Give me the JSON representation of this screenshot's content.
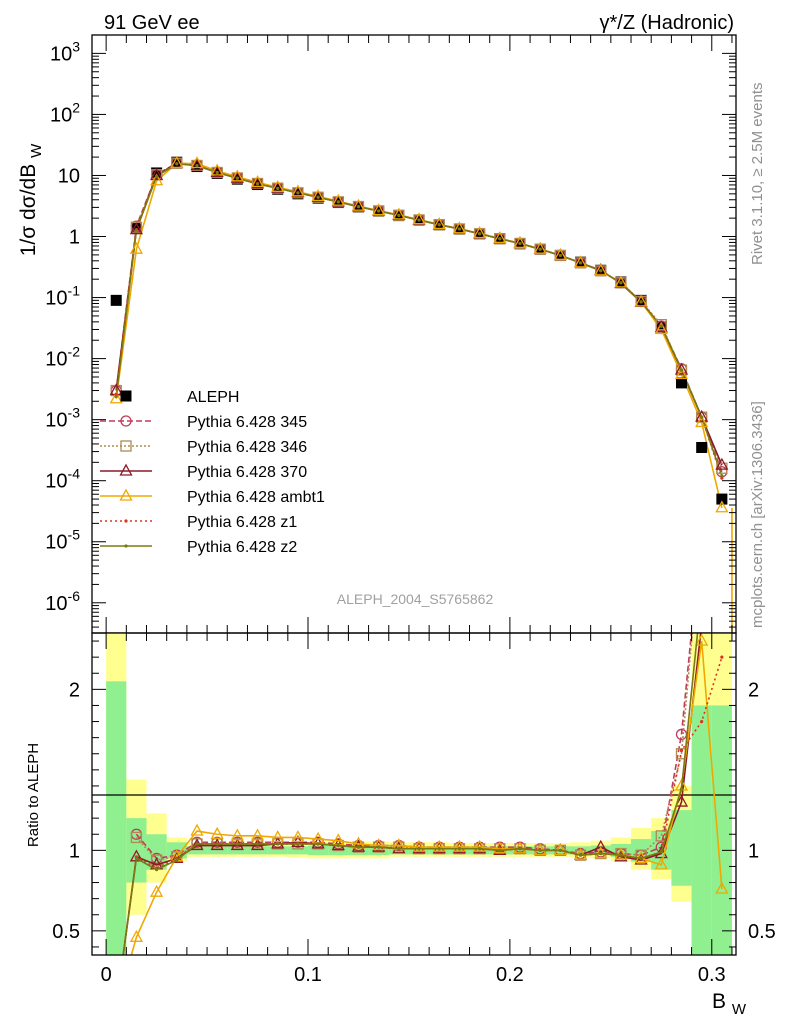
{
  "header": {
    "left": "91 GeV ee",
    "right": "γ*/Z (Hadronic)"
  },
  "side_labels": {
    "rivet": "Rivet 3.1.10, ≥ 2.5M events",
    "mcplots": "mcplots.cern.ch [arXiv:1306.3436]"
  },
  "watermark": "ALEPH_2004_S5765862",
  "colors": {
    "ALEPH": "#000000",
    "p345": "#c03a5a",
    "p346": "#b08a50",
    "p370": "#8c1a28",
    "ambt1": "#f0a800",
    "z1": "#e03020",
    "z2": "#7a7a10",
    "band_inner": "#90f090",
    "band_outer": "#ffff90"
  },
  "chart_data": [
    {
      "type": "line",
      "panel": "main",
      "ylabel": "1/σ  dσ/dB_W",
      "yscale": "log",
      "xlim": [
        -0.007,
        0.312
      ],
      "ylim": [
        3.2e-07,
        2000
      ],
      "yticks": [
        {
          "v": 1e-06,
          "label": "10",
          "exp": "-6"
        },
        {
          "v": 1e-05,
          "label": "10",
          "exp": "-5"
        },
        {
          "v": 0.0001,
          "label": "10",
          "exp": "-4"
        },
        {
          "v": 0.001,
          "label": "10",
          "exp": "-3"
        },
        {
          "v": 0.01,
          "label": "10",
          "exp": "-2"
        },
        {
          "v": 0.1,
          "label": "10",
          "exp": "-1"
        },
        {
          "v": 1,
          "label": "1",
          "exp": ""
        },
        {
          "v": 10,
          "label": "10",
          "exp": ""
        },
        {
          "v": 100,
          "label": "10",
          "exp": "2"
        },
        {
          "v": 1000,
          "label": "10",
          "exp": "3"
        }
      ],
      "x": [
        0.005,
        0.015,
        0.025,
        0.035,
        0.045,
        0.055,
        0.065,
        0.075,
        0.085,
        0.095,
        0.105,
        0.115,
        0.125,
        0.135,
        0.145,
        0.155,
        0.165,
        0.175,
        0.185,
        0.195,
        0.205,
        0.215,
        0.225,
        0.235,
        0.245,
        0.255,
        0.265,
        0.275,
        0.285,
        0.295,
        0.305
      ],
      "legend": {
        "placement": "left-middle",
        "entries": [
          {
            "key": "ALEPH",
            "label": "ALEPH"
          },
          {
            "key": "p345",
            "label": "Pythia 6.428 345"
          },
          {
            "key": "p346",
            "label": "Pythia 6.428 346"
          },
          {
            "key": "p370",
            "label": "Pythia 6.428 370"
          },
          {
            "key": "ambt1",
            "label": "Pythia 6.428 ambt1"
          },
          {
            "key": "z1",
            "label": "Pythia 6.428 z1"
          },
          {
            "key": "z2",
            "label": "Pythia 6.428 z2"
          }
        ]
      },
      "series": [
        {
          "key": "ALEPH",
          "name": "ALEPH",
          "values": [
            0.09,
            1.35,
            11.0,
            16.5,
            14.0,
            10.8,
            8.7,
            7.1,
            5.95,
            5.0,
            4.25,
            3.6,
            3.05,
            2.6,
            2.2,
            1.85,
            1.55,
            1.32,
            1.1,
            0.92,
            0.76,
            0.62,
            0.49,
            0.38,
            0.28,
            0.18,
            0.09,
            0.033,
            0.004,
            0.00035,
            5e-05
          ]
        },
        {
          "key": "p345",
          "name": "Pythia 6.428 345",
          "values": [
            0.003,
            1.48,
            10.4,
            16.0,
            14.7,
            11.3,
            9.1,
            7.4,
            6.2,
            5.2,
            4.4,
            3.7,
            3.1,
            2.64,
            2.24,
            1.88,
            1.57,
            1.34,
            1.12,
            0.93,
            0.77,
            0.62,
            0.49,
            0.37,
            0.275,
            0.175,
            0.086,
            0.034,
            0.0068,
            0.0011,
            0.00014
          ]
        },
        {
          "key": "p346",
          "name": "Pythia 6.428 346",
          "values": [
            0.003,
            1.42,
            10.3,
            15.9,
            14.6,
            11.2,
            9.1,
            7.4,
            6.2,
            5.2,
            4.4,
            3.7,
            3.1,
            2.63,
            2.23,
            1.87,
            1.56,
            1.33,
            1.11,
            0.92,
            0.77,
            0.62,
            0.49,
            0.37,
            0.274,
            0.175,
            0.087,
            0.036,
            0.0065,
            0.0011,
            0.00016
          ]
        },
        {
          "key": "p370",
          "name": "Pythia 6.428 370",
          "values": [
            0.003,
            1.3,
            10.0,
            15.7,
            14.5,
            11.2,
            9.0,
            7.3,
            6.2,
            5.25,
            4.4,
            3.7,
            3.08,
            2.62,
            2.22,
            1.86,
            1.56,
            1.33,
            1.11,
            0.92,
            0.77,
            0.62,
            0.49,
            0.37,
            0.28,
            0.17,
            0.084,
            0.032,
            0.0065,
            0.0011,
            0.00018
          ]
        },
        {
          "key": "ambt1",
          "name": "Pythia 6.428 ambt1",
          "values": [
            0.0022,
            0.62,
            8.2,
            15.8,
            15.7,
            11.9,
            9.5,
            7.7,
            6.4,
            5.4,
            4.55,
            3.8,
            3.15,
            2.66,
            2.26,
            1.89,
            1.58,
            1.34,
            1.12,
            0.93,
            0.77,
            0.62,
            0.49,
            0.37,
            0.274,
            0.174,
            0.085,
            0.03,
            0.0055,
            0.0009,
            3.6e-05
          ]
        },
        {
          "key": "z1",
          "name": "Pythia 6.428 z1",
          "values": [
            0.0026,
            1.3,
            9.8,
            15.6,
            14.5,
            11.2,
            9.05,
            7.35,
            6.15,
            5.2,
            4.4,
            3.7,
            3.08,
            2.62,
            2.22,
            1.86,
            1.56,
            1.33,
            1.11,
            0.92,
            0.77,
            0.62,
            0.49,
            0.37,
            0.275,
            0.175,
            0.085,
            0.034,
            0.0065,
            0.0011,
            0.00011
          ]
        },
        {
          "key": "z2",
          "name": "Pythia 6.428 z2",
          "values": [
            0.0024,
            1.28,
            9.7,
            15.5,
            14.5,
            11.2,
            9.0,
            7.3,
            6.15,
            5.2,
            4.4,
            3.7,
            3.08,
            2.62,
            2.22,
            1.86,
            1.56,
            1.33,
            1.11,
            0.92,
            0.77,
            0.62,
            0.49,
            0.37,
            0.275,
            0.175,
            0.085,
            0.034,
            0.0065,
            0.0011,
            0.00012
          ]
        }
      ]
    },
    {
      "type": "line",
      "panel": "ratio",
      "ylabel": "Ratio to ALEPH",
      "xlabel": "B_W",
      "xlim": [
        -0.007,
        0.312
      ],
      "ylim": [
        0.35,
        2.35
      ],
      "xticks": [
        {
          "v": 0,
          "label": "0"
        },
        {
          "v": 0.1,
          "label": "0.1"
        },
        {
          "v": 0.2,
          "label": "0.2"
        },
        {
          "v": 0.3,
          "label": "0.3"
        }
      ],
      "yticks": [
        {
          "v": 0.5,
          "label": "0.5"
        },
        {
          "v": 1,
          "label": "1"
        },
        {
          "v": 2,
          "label": "2"
        }
      ],
      "band_edges": [
        0,
        0.01,
        0.02,
        0.03,
        0.04,
        0.05,
        0.06,
        0.07,
        0.08,
        0.09,
        0.1,
        0.11,
        0.12,
        0.13,
        0.14,
        0.15,
        0.16,
        0.17,
        0.18,
        0.19,
        0.2,
        0.21,
        0.22,
        0.23,
        0.24,
        0.25,
        0.26,
        0.27,
        0.28,
        0.29,
        0.3,
        0.31
      ],
      "band_inner": [
        [
          0,
          2.05
        ],
        [
          0.8,
          1.2
        ],
        [
          0.88,
          1.1
        ],
        [
          0.95,
          1.05
        ],
        [
          0.975,
          1.025
        ],
        [
          0.975,
          1.025
        ],
        [
          0.975,
          1.025
        ],
        [
          0.975,
          1.025
        ],
        [
          0.975,
          1.025
        ],
        [
          0.975,
          1.025
        ],
        [
          0.97,
          1.03
        ],
        [
          0.97,
          1.03
        ],
        [
          0.97,
          1.03
        ],
        [
          0.97,
          1.03
        ],
        [
          0.975,
          1.025
        ],
        [
          0.975,
          1.025
        ],
        [
          0.975,
          1.025
        ],
        [
          0.975,
          1.025
        ],
        [
          0.975,
          1.025
        ],
        [
          0.975,
          1.025
        ],
        [
          0.975,
          1.025
        ],
        [
          0.975,
          1.025
        ],
        [
          0.975,
          1.025
        ],
        [
          0.975,
          1.025
        ],
        [
          0.97,
          1.03
        ],
        [
          0.96,
          1.04
        ],
        [
          0.93,
          1.07
        ],
        [
          0.88,
          1.12
        ],
        [
          0.78,
          1.25
        ],
        [
          0.35,
          1.9
        ],
        [
          0.35,
          1.9
        ]
      ],
      "band_outer": [
        [
          0,
          2.35
        ],
        [
          0.6,
          1.44
        ],
        [
          0.8,
          1.23
        ],
        [
          0.93,
          1.08
        ],
        [
          0.96,
          1.045
        ],
        [
          0.96,
          1.045
        ],
        [
          0.96,
          1.05
        ],
        [
          0.96,
          1.05
        ],
        [
          0.96,
          1.05
        ],
        [
          0.955,
          1.05
        ],
        [
          0.95,
          1.055
        ],
        [
          0.95,
          1.055
        ],
        [
          0.95,
          1.055
        ],
        [
          0.95,
          1.055
        ],
        [
          0.96,
          1.05
        ],
        [
          0.96,
          1.05
        ],
        [
          0.96,
          1.05
        ],
        [
          0.96,
          1.045
        ],
        [
          0.96,
          1.045
        ],
        [
          0.96,
          1.045
        ],
        [
          0.96,
          1.045
        ],
        [
          0.96,
          1.045
        ],
        [
          0.96,
          1.045
        ],
        [
          0.955,
          1.05
        ],
        [
          0.95,
          1.06
        ],
        [
          0.93,
          1.08
        ],
        [
          0.88,
          1.14
        ],
        [
          0.82,
          1.2
        ],
        [
          0.68,
          1.4
        ],
        [
          0.35,
          2.35
        ],
        [
          0.35,
          2.35
        ]
      ],
      "series": [
        {
          "key": "p345",
          "name": "Pythia 6.428 345",
          "values": [
            null,
            1.1,
            0.95,
            0.97,
            1.05,
            1.05,
            1.05,
            1.05,
            1.05,
            1.05,
            1.05,
            1.04,
            1.03,
            1.03,
            1.03,
            1.02,
            1.02,
            1.02,
            1.02,
            1.02,
            1.02,
            1.01,
            1.0,
            0.98,
            0.99,
            0.98,
            0.97,
            1.02,
            1.72,
            3.0,
            null
          ]
        },
        {
          "key": "p346",
          "name": "Pythia 6.428 346",
          "values": [
            null,
            1.08,
            0.94,
            0.96,
            1.04,
            1.04,
            1.04,
            1.04,
            1.04,
            1.04,
            1.04,
            1.03,
            1.02,
            1.02,
            1.02,
            1.01,
            1.01,
            1.01,
            1.01,
            1.01,
            1.01,
            1.0,
            1.0,
            0.97,
            0.98,
            0.98,
            0.97,
            1.09,
            1.6,
            3.0,
            null
          ]
        },
        {
          "key": "p370",
          "name": "Pythia 6.428 370",
          "values": [
            0.03,
            0.96,
            0.91,
            0.95,
            1.03,
            1.03,
            1.03,
            1.03,
            1.04,
            1.05,
            1.04,
            1.03,
            1.02,
            1.02,
            1.01,
            1.01,
            1.01,
            1.01,
            1.01,
            1.0,
            1.01,
            1.0,
            1.0,
            0.97,
            1.02,
            0.96,
            0.94,
            0.98,
            1.3,
            2.4,
            null
          ]
        },
        {
          "key": "ambt1",
          "name": "Pythia 6.428 ambt1",
          "values": [
            0.02,
            0.46,
            0.74,
            0.96,
            1.12,
            1.1,
            1.09,
            1.09,
            1.08,
            1.08,
            1.07,
            1.06,
            1.04,
            1.03,
            1.03,
            1.02,
            1.02,
            1.02,
            1.02,
            1.01,
            1.01,
            1.0,
            1.0,
            0.97,
            0.98,
            0.97,
            0.95,
            0.91,
            1.4,
            2.3,
            0.76
          ]
        },
        {
          "key": "z1",
          "name": "Pythia 6.428 z1",
          "values": [
            0.03,
            0.96,
            0.89,
            0.95,
            1.04,
            1.04,
            1.04,
            1.04,
            1.04,
            1.04,
            1.04,
            1.03,
            1.02,
            1.02,
            1.01,
            1.01,
            1.01,
            1.01,
            1.01,
            1.0,
            1.01,
            1.0,
            1.0,
            0.97,
            0.98,
            0.97,
            0.95,
            0.99,
            1.62,
            1.8,
            2.2
          ]
        },
        {
          "key": "z2",
          "name": "Pythia 6.428 z2",
          "values": [
            0.03,
            0.95,
            0.88,
            0.94,
            1.04,
            1.04,
            1.04,
            1.04,
            1.04,
            1.04,
            1.04,
            1.03,
            1.02,
            1.02,
            1.01,
            1.01,
            1.01,
            1.01,
            1.01,
            1.0,
            1.01,
            1.0,
            1.0,
            0.97,
            0.98,
            0.97,
            0.95,
            0.99,
            1.38,
            2.6,
            null
          ]
        }
      ]
    }
  ]
}
